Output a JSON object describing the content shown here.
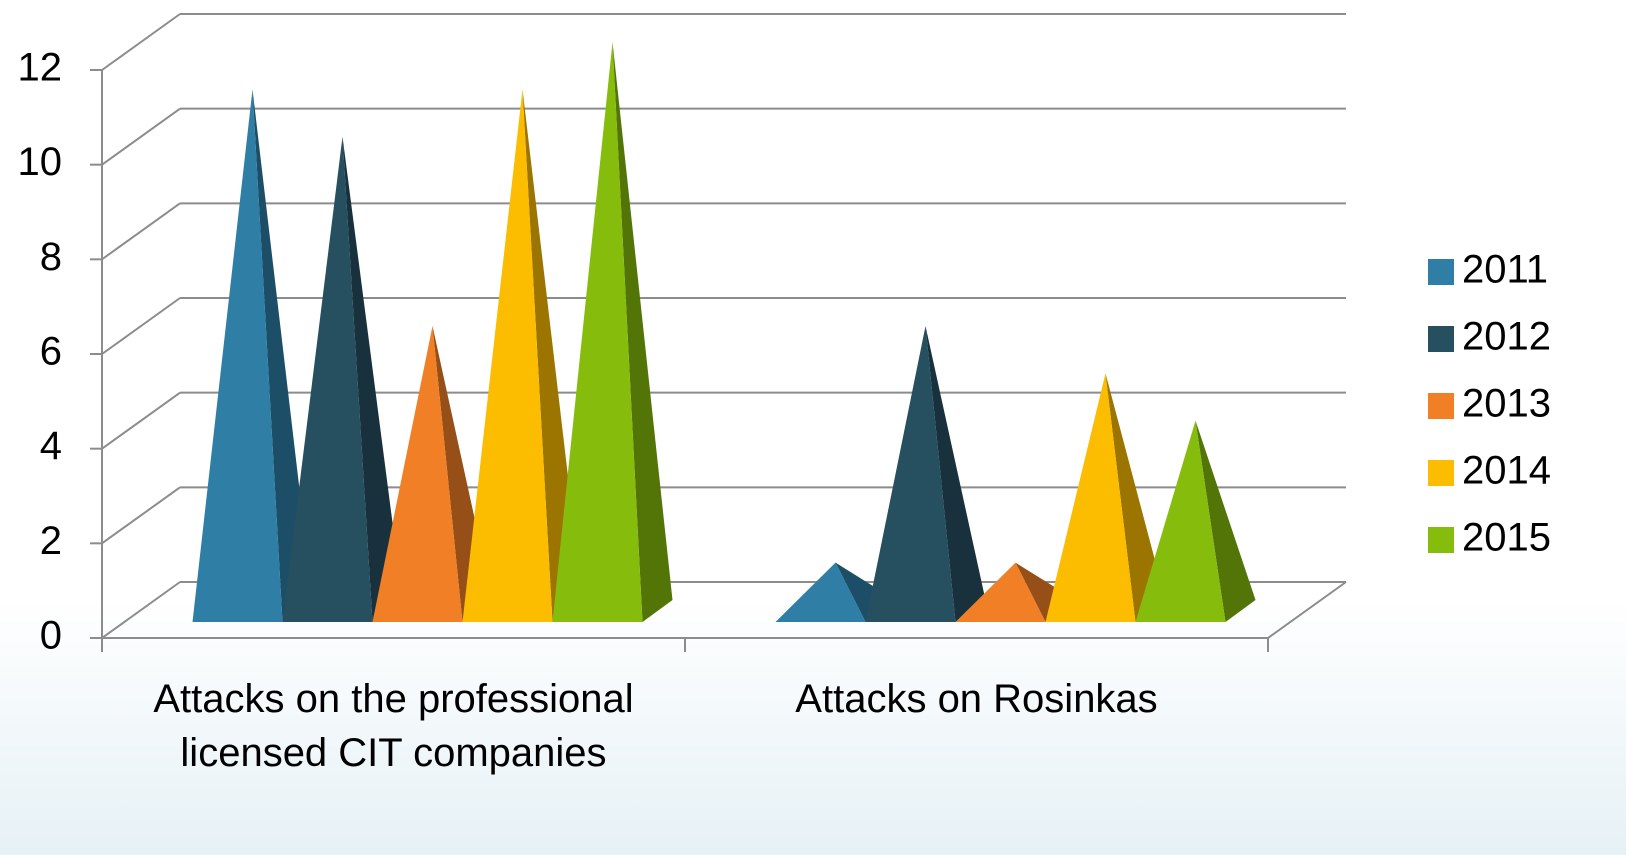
{
  "chart_data": {
    "type": "bar3d-pyramid",
    "categories": [
      "Attacks on the professional licensed CIT companies",
      "Attacks on Rosinkas"
    ],
    "series": [
      {
        "name": "2011",
        "color": "#2e7ea6",
        "values": [
          11,
          1
        ]
      },
      {
        "name": "2012",
        "color": "#264f60",
        "values": [
          10,
          6
        ]
      },
      {
        "name": "2013",
        "color": "#f07f25",
        "values": [
          6,
          1
        ]
      },
      {
        "name": "2014",
        "color": "#fcbc00",
        "values": [
          11,
          5
        ]
      },
      {
        "name": "2015",
        "color": "#86bd0c",
        "values": [
          12,
          4
        ]
      }
    ],
    "ylim": [
      0,
      12
    ],
    "yticks": [
      0,
      2,
      4,
      6,
      8,
      10,
      12
    ],
    "grid": true,
    "legend": "right"
  }
}
